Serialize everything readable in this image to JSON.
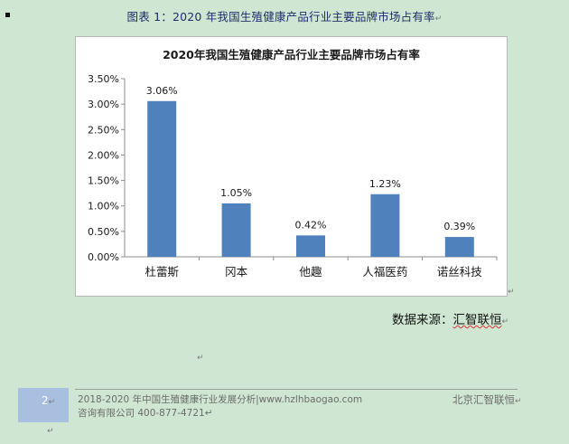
{
  "caption": {
    "text": "图表 1：2020 年我国生殖健康产品行业主要品牌市场占有率",
    "mark": "↵"
  },
  "chart_data": {
    "type": "bar",
    "title": "2020年我国生殖健康产品行业主要品牌市场占有率",
    "categories": [
      "杜蕾斯",
      "冈本",
      "他趣",
      "人福医药",
      "诺丝科技"
    ],
    "values": [
      3.06,
      1.05,
      0.42,
      1.23,
      0.39
    ],
    "value_labels": [
      "3.06%",
      "1.05%",
      "0.42%",
      "1.23%",
      "0.39%"
    ],
    "ylim": [
      0,
      3.5
    ],
    "yticks": [
      "0.00%",
      "0.50%",
      "1.00%",
      "1.50%",
      "2.00%",
      "2.50%",
      "3.00%",
      "3.50%"
    ],
    "xlabel": "",
    "ylabel": "",
    "bar_color": "#4f81bd",
    "grid": false,
    "legend": "none"
  },
  "source": {
    "prefix": "数据来源：",
    "name": "汇智联恒",
    "mark": "↵"
  },
  "marks": {
    "paragraph": "↵"
  },
  "footer": {
    "page_number": "2",
    "page_mark": "↵",
    "line1": "2018-2020 年中国生殖健康行业发展分析|www.hzlhbaogao.com",
    "line2": "咨询有限公司  400-877-4721↵",
    "right": "北京汇智联恒",
    "right_mark": "↵"
  },
  "colors": {
    "background": "#cfe7d2",
    "footer_box": "#a9bfe0"
  }
}
